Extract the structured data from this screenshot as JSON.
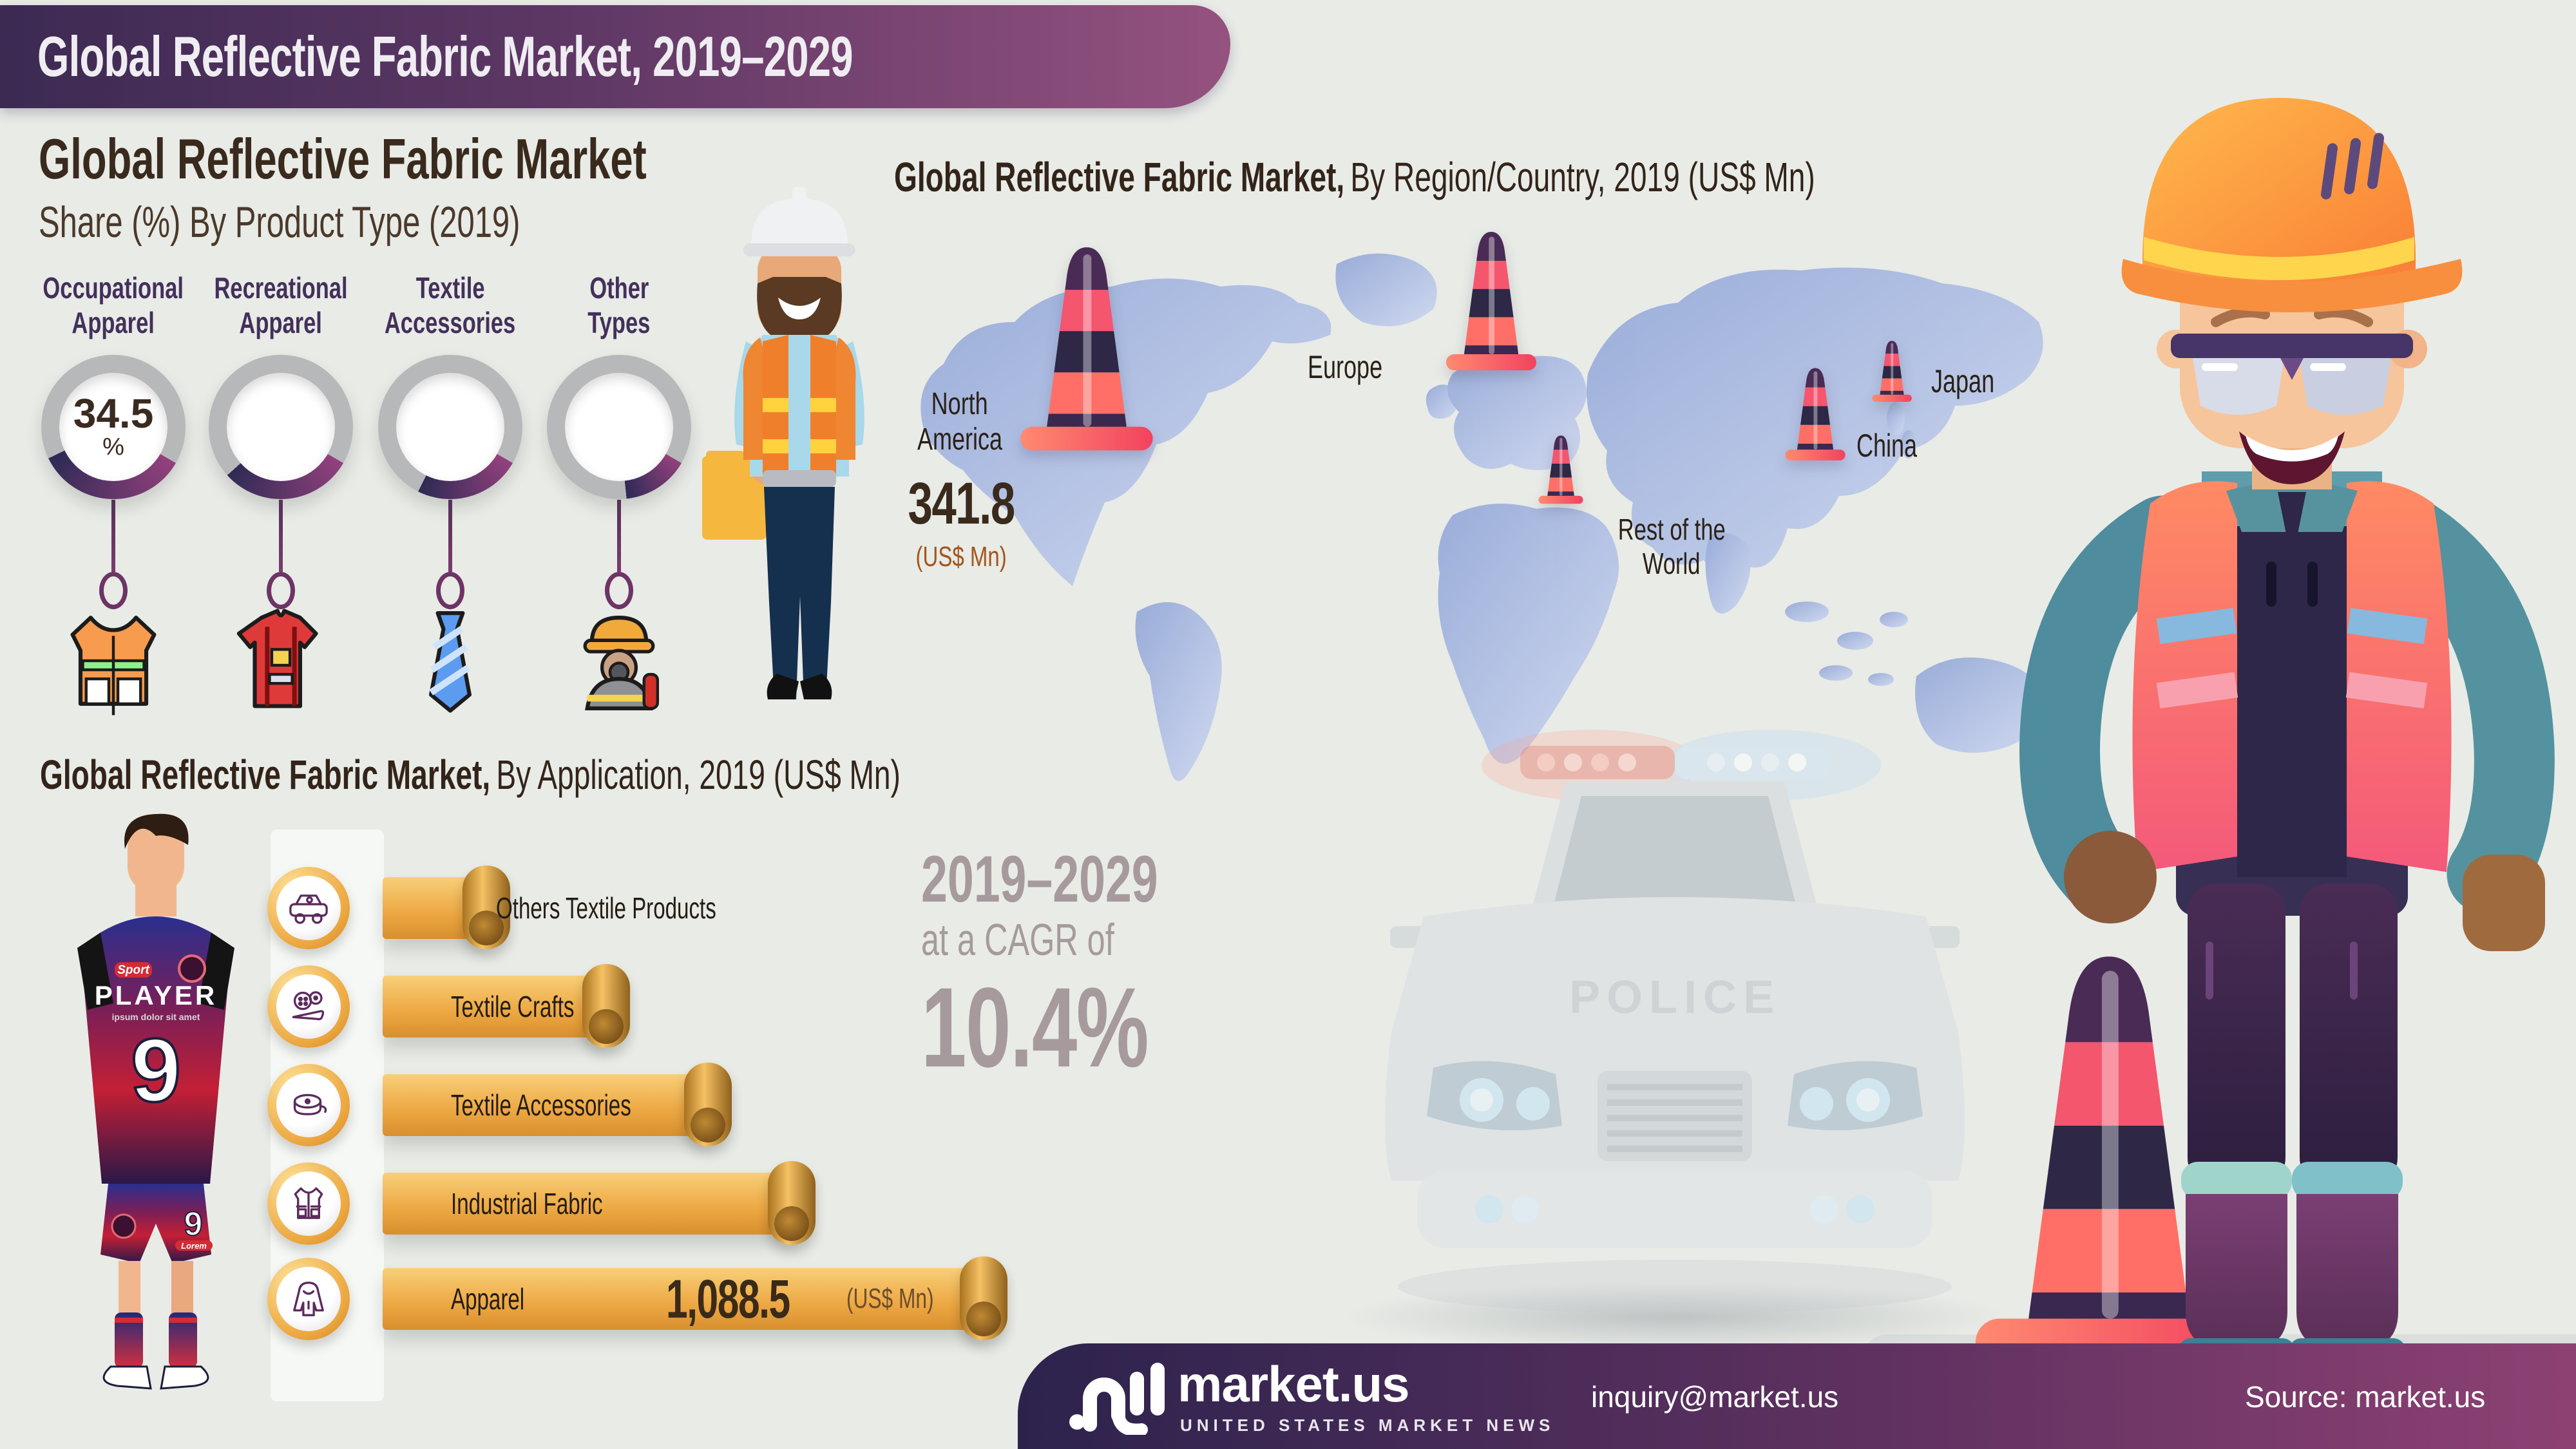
{
  "header": {
    "title": "Global Reflective Fabric Market, 2019–2029"
  },
  "product_type_section": {
    "title": "Global Reflective Fabric Market",
    "subtitle": "Share (%) By Product Type (2019)",
    "categories": [
      {
        "label_line1": "Occupational",
        "label_line2": "Apparel",
        "value_label": "34.5",
        "value_unit": "%",
        "share_pct_est": 34.5,
        "icon": "safety-vest-icon"
      },
      {
        "label_line1": "Recreational",
        "label_line2": "Apparel",
        "value_label": "",
        "value_unit": "",
        "share_pct_est": 30,
        "icon": "sports-jersey-icon"
      },
      {
        "label_line1": "Textile",
        "label_line2": "Accessories",
        "value_label": "",
        "value_unit": "",
        "share_pct_est": 24,
        "icon": "necktie-icon"
      },
      {
        "label_line1": "Other",
        "label_line2": "Types",
        "value_label": "",
        "value_unit": "",
        "share_pct_est": 15,
        "icon": "firefighter-icon"
      }
    ]
  },
  "region_section": {
    "title_bold": "Global Reflective Fabric Market,",
    "title_rest": "By Region/Country, 2019 (US$ Mn)",
    "north_america": {
      "line1": "North",
      "line2": "America",
      "value": "341.8",
      "unit": "(US$ Mn)"
    },
    "europe": {
      "label": "Europe"
    },
    "rest_of_world": {
      "line1": "Rest of the",
      "line2": "World"
    },
    "china": {
      "label": "China"
    },
    "japan": {
      "label": "Japan"
    }
  },
  "application_section": {
    "title_bold": "Global Reflective Fabric Market,",
    "title_rest": "By Application, 2019 (US$ Mn)",
    "bars": [
      {
        "label": "Others Textile Products",
        "icon": "car-icon",
        "length_pct_est": 17,
        "value": "",
        "unit": ""
      },
      {
        "label": "Textile Crafts",
        "icon": "sewing-crafts-icon",
        "length_pct_est": 37,
        "value": "",
        "unit": ""
      },
      {
        "label": "Textile Accessories",
        "icon": "measuring-tape-icon",
        "length_pct_est": 54,
        "value": "",
        "unit": ""
      },
      {
        "label": "Industrial Fabric",
        "icon": "vest-icon",
        "length_pct_est": 68,
        "value": "",
        "unit": ""
      },
      {
        "label": "Apparel",
        "icon": "hoodie-icon",
        "length_pct_est": 100,
        "value": "1,088.5",
        "unit": "(US$ Mn)"
      }
    ]
  },
  "cagr": {
    "line1": "2019–2029",
    "line2": "at a CAGR of",
    "line3": "10.4%"
  },
  "player": {
    "brand": "Sport",
    "name": "PLAYER",
    "tagline": "ipsum dolor sit amet",
    "number": "9",
    "shorts_number": "9",
    "shorts_brand": "Lorem"
  },
  "police_car": {
    "label": "POLICE"
  },
  "footer": {
    "logo_text": "market.us",
    "logo_tagline": "UNITED STATES MARKET NEWS",
    "email": "inquiry@market.us",
    "source": "Source: market.us"
  },
  "chart_data": [
    {
      "type": "pie",
      "subtype": "donut-gauges",
      "title": "Global Reflective Fabric Market Share (%) By Product Type (2019)",
      "categories": [
        "Occupational Apparel",
        "Recreational Apparel",
        "Textile Accessories",
        "Other Types"
      ],
      "series": [
        {
          "name": "share_pct",
          "values": [
            34.5,
            null,
            null,
            null
          ]
        }
      ],
      "value_labels": [
        "34.5 %",
        "",
        "",
        ""
      ],
      "values_visual_estimate_pct": [
        34.5,
        30,
        24,
        15
      ],
      "legend_position": "above-each-gauge",
      "accent_colors": {
        "ring_gray": "#b7b8ba",
        "arc_purple_start": "#93417c",
        "arc_purple_end": "#2f2a55"
      }
    },
    {
      "type": "map",
      "title": "Global Reflective Fabric Market, By Region/Country, 2019 (US$ Mn)",
      "regions": [
        "North America",
        "Europe",
        "China",
        "Japan",
        "Rest of the World"
      ],
      "values": [
        341.8,
        null,
        null,
        null,
        null
      ],
      "value_labels": [
        "341.8 (US$ Mn)",
        "",
        "",
        "",
        ""
      ],
      "marker": "traffic-cone",
      "marker_relative_size": [
        "large",
        "large",
        "medium",
        "small",
        "small"
      ]
    },
    {
      "type": "bar",
      "orientation": "horizontal",
      "title": "Global Reflective Fabric Market, By Application, 2019 (US$ Mn)",
      "categories": [
        "Others Textile Products",
        "Textile Crafts",
        "Textile Accessories",
        "Industrial Fabric",
        "Apparel"
      ],
      "series": [
        {
          "name": "2019",
          "values": [
            null,
            null,
            null,
            null,
            1088.5
          ]
        }
      ],
      "value_labels": [
        "",
        "",
        "",
        "",
        "1,088.5 (US$ Mn)"
      ],
      "lengths_visual_estimate_pct": [
        17,
        37,
        54,
        68,
        100
      ],
      "bar_color": "#eda843"
    },
    {
      "type": "callout",
      "period": "2019–2029",
      "text": "2019–2029 at a CAGR of 10.4%",
      "cagr_pct": 10.4
    }
  ]
}
